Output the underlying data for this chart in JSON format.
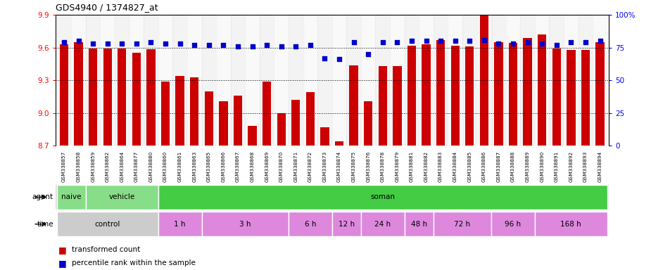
{
  "title": "GDS4940 / 1374827_at",
  "samples": [
    "GSM338857",
    "GSM338858",
    "GSM338859",
    "GSM338862",
    "GSM338864",
    "GSM338877",
    "GSM338880",
    "GSM338860",
    "GSM338861",
    "GSM338863",
    "GSM338865",
    "GSM338866",
    "GSM338867",
    "GSM338868",
    "GSM338869",
    "GSM338870",
    "GSM338871",
    "GSM338872",
    "GSM338873",
    "GSM338874",
    "GSM338875",
    "GSM338876",
    "GSM338878",
    "GSM338879",
    "GSM338881",
    "GSM338882",
    "GSM338883",
    "GSM338884",
    "GSM338885",
    "GSM338886",
    "GSM338887",
    "GSM338888",
    "GSM338889",
    "GSM338890",
    "GSM338891",
    "GSM338892",
    "GSM338893",
    "GSM338894"
  ],
  "bar_values": [
    9.63,
    9.65,
    9.59,
    9.59,
    9.59,
    9.55,
    9.585,
    9.29,
    9.34,
    9.33,
    9.2,
    9.11,
    9.16,
    8.885,
    9.29,
    9.0,
    9.12,
    9.19,
    8.87,
    8.74,
    9.44,
    9.11,
    9.43,
    9.43,
    9.62,
    9.63,
    9.67,
    9.62,
    9.61,
    9.98,
    9.65,
    9.64,
    9.69,
    9.72,
    9.59,
    9.58,
    9.58,
    9.65
  ],
  "percentile_values": [
    79,
    80,
    78,
    78,
    78,
    78,
    79,
    78,
    78,
    77,
    77,
    77,
    76,
    76,
    77,
    76,
    76,
    77,
    67,
    66,
    79,
    70,
    79,
    79,
    80,
    80,
    80,
    80,
    80,
    81,
    78,
    78,
    79,
    78,
    77,
    79,
    79,
    80
  ],
  "ymin": 8.7,
  "ymax": 9.9,
  "yticks": [
    8.7,
    9.0,
    9.3,
    9.6,
    9.9
  ],
  "right_yticks": [
    0,
    25,
    50,
    75,
    100
  ],
  "bar_color": "#cc0000",
  "dot_color": "#0000cc",
  "agent_groups": [
    {
      "label": "naive",
      "start": 0,
      "end": 2,
      "color": "#88dd88"
    },
    {
      "label": "vehicle",
      "start": 2,
      "end": 7,
      "color": "#88dd88"
    },
    {
      "label": "soman",
      "start": 7,
      "end": 38,
      "color": "#44cc44"
    }
  ],
  "time_groups": [
    {
      "label": "control",
      "start": 0,
      "end": 7,
      "color": "#cccccc"
    },
    {
      "label": "1 h",
      "start": 7,
      "end": 10,
      "color": "#dd88dd"
    },
    {
      "label": "3 h",
      "start": 10,
      "end": 16,
      "color": "#dd88dd"
    },
    {
      "label": "6 h",
      "start": 16,
      "end": 19,
      "color": "#dd88dd"
    },
    {
      "label": "12 h",
      "start": 19,
      "end": 21,
      "color": "#dd88dd"
    },
    {
      "label": "24 h",
      "start": 21,
      "end": 24,
      "color": "#dd88dd"
    },
    {
      "label": "48 h",
      "start": 24,
      "end": 26,
      "color": "#dd88dd"
    },
    {
      "label": "72 h",
      "start": 26,
      "end": 30,
      "color": "#dd88dd"
    },
    {
      "label": "96 h",
      "start": 30,
      "end": 33,
      "color": "#dd88dd"
    },
    {
      "label": "168 h",
      "start": 33,
      "end": 38,
      "color": "#dd88dd"
    }
  ],
  "legend_bar_label": "transformed count",
  "legend_dot_label": "percentile rank within the sample"
}
